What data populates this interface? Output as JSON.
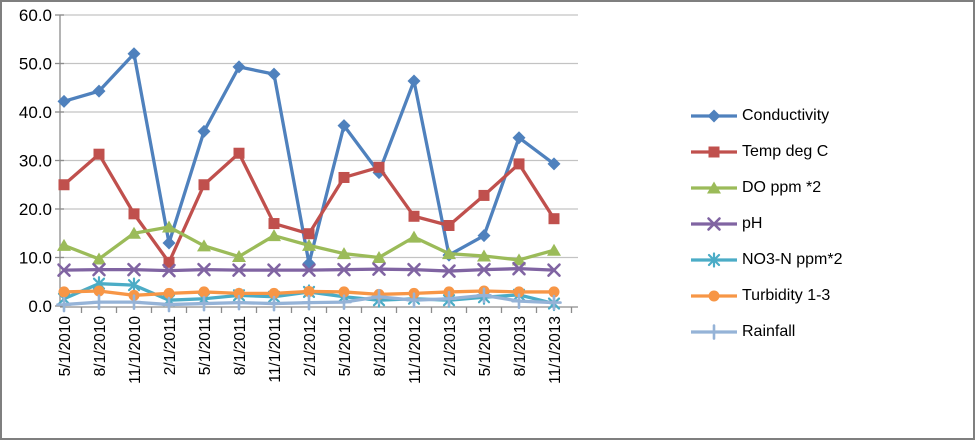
{
  "chart_data": {
    "type": "line",
    "title": "",
    "categories": [
      "5/1/2010",
      "8/1/2010",
      "11/1/2010",
      "2/1/2011",
      "5/1/2011",
      "8/1/2011",
      "11/1/2011",
      "2/1/2012",
      "5/1/2012",
      "8/1/2012",
      "11/1/2012",
      "2/1/2013",
      "5/1/2013",
      "8/1/2013",
      "11/1/2013"
    ],
    "y_axis": {
      "min": 0,
      "max": 60,
      "step": 10,
      "tick_labels": [
        "0.0",
        "10.0",
        "20.0",
        "30.0",
        "40.0",
        "50.0",
        "60.0"
      ]
    },
    "grid": true,
    "legend_position": "right",
    "series": [
      {
        "name": "Conductivity",
        "color": "#4F81BD",
        "marker": "diamond",
        "values": [
          42.2,
          44.3,
          52.0,
          13.0,
          36.0,
          49.3,
          47.8,
          8.8,
          37.2,
          27.5,
          46.4,
          10.5,
          14.5,
          34.7,
          29.3
        ]
      },
      {
        "name": "Temp deg C",
        "color": "#C0504D",
        "marker": "square",
        "values": [
          25.0,
          31.3,
          19.0,
          9.0,
          25.0,
          31.5,
          17.0,
          14.9,
          26.5,
          28.6,
          18.5,
          16.6,
          22.8,
          29.3,
          18.0
        ]
      },
      {
        "name": "DO ppm *2",
        "color": "#9BBB59",
        "marker": "triangle",
        "values": [
          12.5,
          9.7,
          15.0,
          16.3,
          12.4,
          10.2,
          14.5,
          12.5,
          10.8,
          10.0,
          14.2,
          10.8,
          10.3,
          9.5,
          11.5
        ]
      },
      {
        "name": "pH",
        "color": "#8064A2",
        "marker": "x",
        "values": [
          7.4,
          7.5,
          7.5,
          7.3,
          7.5,
          7.4,
          7.4,
          7.4,
          7.5,
          7.6,
          7.5,
          7.2,
          7.5,
          7.7,
          7.4
        ]
      },
      {
        "name": "NO3-N ppm*2",
        "color": "#4BACC6",
        "marker": "asterisk",
        "values": [
          1.5,
          4.6,
          4.3,
          1.2,
          1.5,
          2.2,
          1.9,
          2.9,
          1.9,
          1.2,
          1.5,
          1.2,
          1.8,
          2.3,
          0.5
        ]
      },
      {
        "name": "Turbidity 1-3",
        "color": "#F79646",
        "marker": "circle",
        "values": [
          2.9,
          3.1,
          2.2,
          2.6,
          2.9,
          2.6,
          2.6,
          3.0,
          2.9,
          2.4,
          2.6,
          2.9,
          3.1,
          2.9,
          2.9
        ]
      },
      {
        "name": "Rainfall",
        "color": "#95B3D7",
        "marker": "plus",
        "values": [
          0.3,
          0.8,
          0.8,
          0.3,
          0.5,
          0.7,
          0.5,
          0.7,
          0.8,
          1.9,
          1.2,
          1.5,
          2.2,
          1.0,
          0.7
        ]
      }
    ]
  },
  "colors": {
    "background": "#FFFFFF",
    "frame_border": "#7F7F7F",
    "axis": "#8C8C8C",
    "gridline": "#C3C3C3",
    "text": "#000000"
  }
}
